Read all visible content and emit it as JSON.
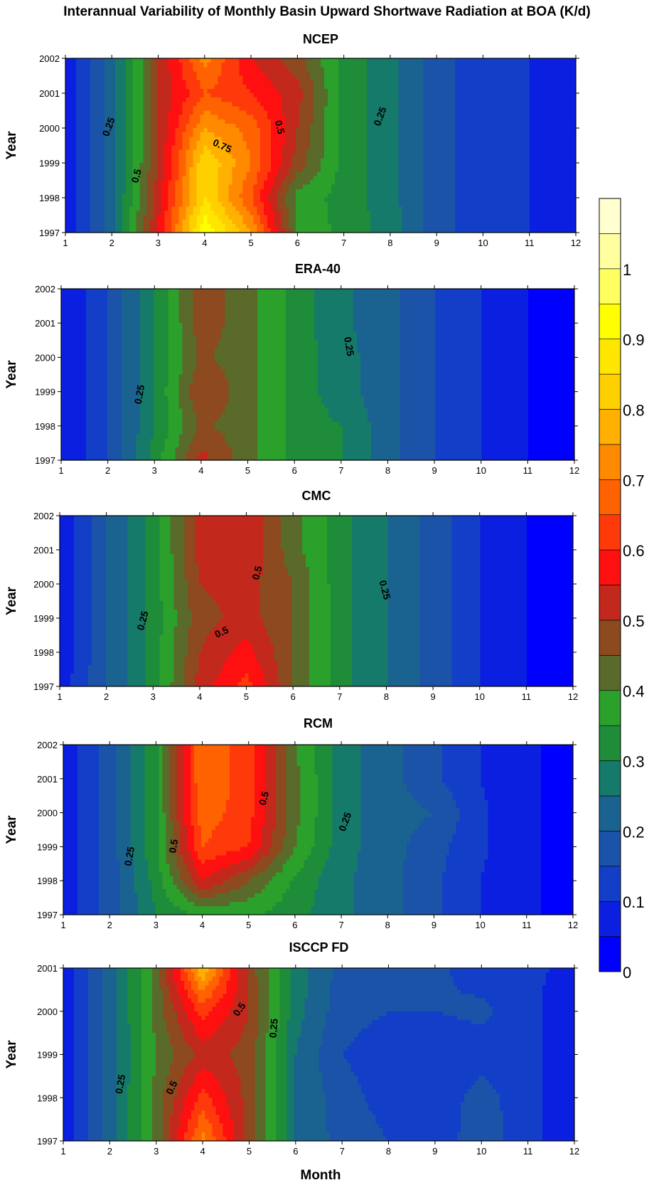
{
  "figure_title": "Interannual Variability of Monthly Basin Upward Shortwave Radiation at BOA (K/d)",
  "shared_xlabel": "Month",
  "colorbar": {
    "levels": [
      0,
      0.05,
      0.1,
      0.15,
      0.2,
      0.25,
      0.3,
      0.35,
      0.4,
      0.45,
      0.5,
      0.55,
      0.6,
      0.65,
      0.7,
      0.75,
      0.8,
      0.85,
      0.9,
      0.95,
      1.0,
      1.05,
      1.1
    ],
    "colors": [
      "#0000ff",
      "#0a1fe0",
      "#123ec8",
      "#1a53a8",
      "#1a6390",
      "#157a6a",
      "#1f8c3a",
      "#2ba02b",
      "#5a6a2a",
      "#8c4a1e",
      "#c2281c",
      "#ff1010",
      "#ff3a0a",
      "#ff6200",
      "#ff8a00",
      "#ffb000",
      "#ffd000",
      "#ffe600",
      "#ffff00",
      "#ffff60",
      "#ffffa0",
      "#ffffd0"
    ],
    "tick_labels": [
      "0",
      "0.1",
      "0.2",
      "0.3",
      "0.4",
      "0.5",
      "0.6",
      "0.7",
      "0.8",
      "0.9",
      "1"
    ],
    "tick_values": [
      0,
      0.1,
      0.2,
      0.3,
      0.4,
      0.5,
      0.6,
      0.7,
      0.8,
      0.9,
      1.0
    ]
  },
  "chart_data": [
    {
      "type": "heatmap",
      "title": "NCEP",
      "xlabel": "",
      "ylabel": "Year",
      "x": [
        1,
        2,
        3,
        4,
        5,
        6,
        7,
        8,
        9,
        10,
        11,
        12
      ],
      "y": [
        1997,
        1998,
        1999,
        2000,
        2001,
        2002
      ],
      "xlim": [
        1,
        12
      ],
      "ylim": [
        1997,
        2002
      ],
      "x_tick_labels": [
        "1",
        "2",
        "3",
        "4",
        "5",
        "6",
        "7",
        "8",
        "9",
        "10",
        "11",
        "12"
      ],
      "y_tick_labels": [
        "1997",
        "1998",
        "1999",
        "2000",
        "2001",
        "2002"
      ],
      "z": [
        [
          0.07,
          0.22,
          0.55,
          0.95,
          0.75,
          0.4,
          0.33,
          0.28,
          0.17,
          0.12,
          0.1,
          0.08
        ],
        [
          0.07,
          0.22,
          0.53,
          0.85,
          0.65,
          0.38,
          0.33,
          0.27,
          0.17,
          0.12,
          0.1,
          0.07
        ],
        [
          0.07,
          0.22,
          0.5,
          0.85,
          0.7,
          0.48,
          0.33,
          0.27,
          0.17,
          0.12,
          0.1,
          0.06
        ],
        [
          0.07,
          0.22,
          0.5,
          0.75,
          0.68,
          0.5,
          0.33,
          0.27,
          0.17,
          0.12,
          0.1,
          0.05
        ],
        [
          0.07,
          0.22,
          0.5,
          0.65,
          0.6,
          0.52,
          0.33,
          0.27,
          0.17,
          0.12,
          0.1,
          0.07
        ],
        [
          0.07,
          0.22,
          0.5,
          0.72,
          0.55,
          0.47,
          0.33,
          0.27,
          0.17,
          0.12,
          0.1,
          0.07
        ]
      ],
      "contour_labels": [
        {
          "text": "0.25",
          "x": 2.0,
          "y": 2000.0,
          "angle": -70
        },
        {
          "text": "0.5",
          "x": 2.6,
          "y": 1998.6,
          "angle": -75
        },
        {
          "text": "0.75",
          "x": 4.35,
          "y": 1999.4,
          "angle": 25
        },
        {
          "text": "0.5",
          "x": 5.55,
          "y": 2000.0,
          "angle": 75
        },
        {
          "text": "0.25",
          "x": 7.85,
          "y": 2000.3,
          "angle": -70
        }
      ]
    },
    {
      "type": "heatmap",
      "title": "ERA-40",
      "xlabel": "",
      "ylabel": "Year",
      "x": [
        1,
        2,
        3,
        4,
        5,
        6,
        7,
        8,
        9,
        10,
        11,
        12
      ],
      "y": [
        1997,
        1998,
        1999,
        2000,
        2001,
        2002
      ],
      "xlim": [
        1,
        12
      ],
      "ylim": [
        1997,
        2002
      ],
      "x_tick_labels": [
        "1",
        "2",
        "3",
        "4",
        "5",
        "6",
        "7",
        "8",
        "9",
        "10",
        "11",
        "12"
      ],
      "y_tick_labels": [
        "1997",
        "1998",
        "1999",
        "2000",
        "2001",
        "2002"
      ],
      "z": [
        [
          0.05,
          0.15,
          0.32,
          0.52,
          0.42,
          0.33,
          0.3,
          0.22,
          0.15,
          0.1,
          0.05,
          0.03
        ],
        [
          0.05,
          0.15,
          0.3,
          0.46,
          0.42,
          0.33,
          0.3,
          0.22,
          0.15,
          0.1,
          0.05,
          0.03
        ],
        [
          0.05,
          0.15,
          0.3,
          0.5,
          0.42,
          0.33,
          0.27,
          0.22,
          0.15,
          0.1,
          0.05,
          0.03
        ],
        [
          0.05,
          0.15,
          0.3,
          0.46,
          0.42,
          0.33,
          0.27,
          0.22,
          0.15,
          0.1,
          0.05,
          0.03
        ],
        [
          0.05,
          0.15,
          0.3,
          0.48,
          0.42,
          0.33,
          0.26,
          0.22,
          0.15,
          0.1,
          0.05,
          0.03
        ],
        [
          0.05,
          0.15,
          0.3,
          0.48,
          0.42,
          0.33,
          0.26,
          0.22,
          0.15,
          0.1,
          0.05,
          0.03
        ]
      ],
      "contour_labels": [
        {
          "text": "0.25",
          "x": 2.75,
          "y": 1998.9,
          "angle": -80
        },
        {
          "text": "0.25",
          "x": 7.1,
          "y": 2000.3,
          "angle": 80
        }
      ]
    },
    {
      "type": "heatmap",
      "title": "CMC",
      "xlabel": "",
      "ylabel": "Year",
      "x": [
        1,
        2,
        3,
        4,
        5,
        6,
        7,
        8,
        9,
        10,
        11,
        12
      ],
      "y": [
        1997,
        1998,
        1999,
        2000,
        2001,
        2002
      ],
      "xlim": [
        1,
        12
      ],
      "ylim": [
        1997,
        2002
      ],
      "x_tick_labels": [
        "1",
        "2",
        "3",
        "4",
        "5",
        "6",
        "7",
        "8",
        "9",
        "10",
        "11",
        "12"
      ],
      "y_tick_labels": [
        "1997",
        "1998",
        "1999",
        "2000",
        "2001",
        "2002"
      ],
      "z": [
        [
          0.07,
          0.2,
          0.32,
          0.52,
          0.62,
          0.45,
          0.32,
          0.25,
          0.18,
          0.1,
          0.05,
          0.03
        ],
        [
          0.05,
          0.2,
          0.32,
          0.5,
          0.57,
          0.45,
          0.32,
          0.25,
          0.18,
          0.1,
          0.05,
          0.03
        ],
        [
          0.05,
          0.2,
          0.32,
          0.48,
          0.52,
          0.45,
          0.32,
          0.25,
          0.18,
          0.1,
          0.05,
          0.03
        ],
        [
          0.05,
          0.2,
          0.32,
          0.5,
          0.52,
          0.45,
          0.32,
          0.25,
          0.18,
          0.1,
          0.05,
          0.03
        ],
        [
          0.05,
          0.2,
          0.32,
          0.52,
          0.55,
          0.42,
          0.32,
          0.25,
          0.18,
          0.1,
          0.05,
          0.03
        ],
        [
          0.05,
          0.2,
          0.32,
          0.52,
          0.55,
          0.42,
          0.32,
          0.25,
          0.18,
          0.1,
          0.05,
          0.03
        ]
      ],
      "contour_labels": [
        {
          "text": "0.25",
          "x": 2.85,
          "y": 1998.9,
          "angle": -75
        },
        {
          "text": "0.5",
          "x": 4.5,
          "y": 1998.5,
          "angle": -25
        },
        {
          "text": "0.5",
          "x": 5.3,
          "y": 2000.3,
          "angle": -75
        },
        {
          "text": "0.25",
          "x": 7.9,
          "y": 1999.8,
          "angle": 75
        }
      ]
    },
    {
      "type": "heatmap",
      "title": "RCM",
      "xlabel": "",
      "ylabel": "Year",
      "x": [
        1,
        2,
        3,
        4,
        5,
        6,
        7,
        8,
        9,
        10,
        11,
        12
      ],
      "y": [
        1997,
        1998,
        1999,
        2000,
        2001,
        2002
      ],
      "xlim": [
        1,
        12
      ],
      "ylim": [
        1997,
        2002
      ],
      "x_tick_labels": [
        "1",
        "2",
        "3",
        "4",
        "5",
        "6",
        "7",
        "8",
        "9",
        "10",
        "11",
        "12"
      ],
      "y_tick_labels": [
        "1997",
        "1998",
        "1999",
        "2000",
        "2001",
        "2002"
      ],
      "z": [
        [
          0.07,
          0.17,
          0.3,
          0.36,
          0.36,
          0.32,
          0.26,
          0.22,
          0.16,
          0.1,
          0.06,
          0.03
        ],
        [
          0.07,
          0.17,
          0.32,
          0.55,
          0.45,
          0.34,
          0.26,
          0.22,
          0.16,
          0.1,
          0.06,
          0.03
        ],
        [
          0.07,
          0.17,
          0.34,
          0.65,
          0.6,
          0.4,
          0.27,
          0.22,
          0.17,
          0.11,
          0.06,
          0.03
        ],
        [
          0.07,
          0.17,
          0.34,
          0.68,
          0.62,
          0.42,
          0.27,
          0.22,
          0.2,
          0.11,
          0.06,
          0.03
        ],
        [
          0.07,
          0.17,
          0.34,
          0.7,
          0.62,
          0.42,
          0.27,
          0.22,
          0.16,
          0.1,
          0.06,
          0.03
        ],
        [
          0.07,
          0.17,
          0.34,
          0.7,
          0.62,
          0.4,
          0.27,
          0.22,
          0.16,
          0.1,
          0.06,
          0.03
        ]
      ],
      "contour_labels": [
        {
          "text": "0.25",
          "x": 2.5,
          "y": 1998.7,
          "angle": -80
        },
        {
          "text": "0.5",
          "x": 3.45,
          "y": 1999.0,
          "angle": -80
        },
        {
          "text": "0.5",
          "x": 5.4,
          "y": 2000.4,
          "angle": -75
        },
        {
          "text": "0.25",
          "x": 7.15,
          "y": 1999.7,
          "angle": -70
        }
      ]
    },
    {
      "type": "heatmap",
      "title": "ISCCP FD",
      "xlabel": "Month",
      "ylabel": "Year",
      "x": [
        1,
        2,
        3,
        4,
        5,
        6,
        7,
        8,
        9,
        10,
        11,
        12
      ],
      "y": [
        1997,
        1998,
        1999,
        2000,
        2001
      ],
      "xlim": [
        1,
        12
      ],
      "ylim": [
        1997,
        2001
      ],
      "x_tick_labels": [
        "1",
        "2",
        "3",
        "4",
        "5",
        "6",
        "7",
        "8",
        "9",
        "10",
        "11",
        "12"
      ],
      "y_tick_labels": [
        "1997",
        "1998",
        "1999",
        "2000",
        "2001"
      ],
      "z": [
        [
          0.07,
          0.22,
          0.42,
          0.72,
          0.48,
          0.25,
          0.18,
          0.15,
          0.12,
          0.18,
          0.12,
          0.06
        ],
        [
          0.07,
          0.22,
          0.42,
          0.62,
          0.48,
          0.25,
          0.17,
          0.13,
          0.12,
          0.17,
          0.12,
          0.06
        ],
        [
          0.07,
          0.22,
          0.4,
          0.52,
          0.48,
          0.25,
          0.15,
          0.12,
          0.12,
          0.13,
          0.12,
          0.05
        ],
        [
          0.07,
          0.22,
          0.42,
          0.62,
          0.5,
          0.27,
          0.17,
          0.15,
          0.15,
          0.16,
          0.12,
          0.05
        ],
        [
          0.07,
          0.22,
          0.42,
          0.8,
          0.48,
          0.28,
          0.18,
          0.17,
          0.16,
          0.13,
          0.11,
          0.09
        ]
      ],
      "contour_labels": [
        {
          "text": "0.25",
          "x": 2.3,
          "y": 1998.3,
          "angle": -80
        },
        {
          "text": "0.5",
          "x": 3.4,
          "y": 1998.2,
          "angle": -65
        },
        {
          "text": "0.5",
          "x": 4.85,
          "y": 2000.0,
          "angle": -55
        },
        {
          "text": "0.25",
          "x": 5.6,
          "y": 1999.6,
          "angle": -85
        }
      ]
    }
  ]
}
